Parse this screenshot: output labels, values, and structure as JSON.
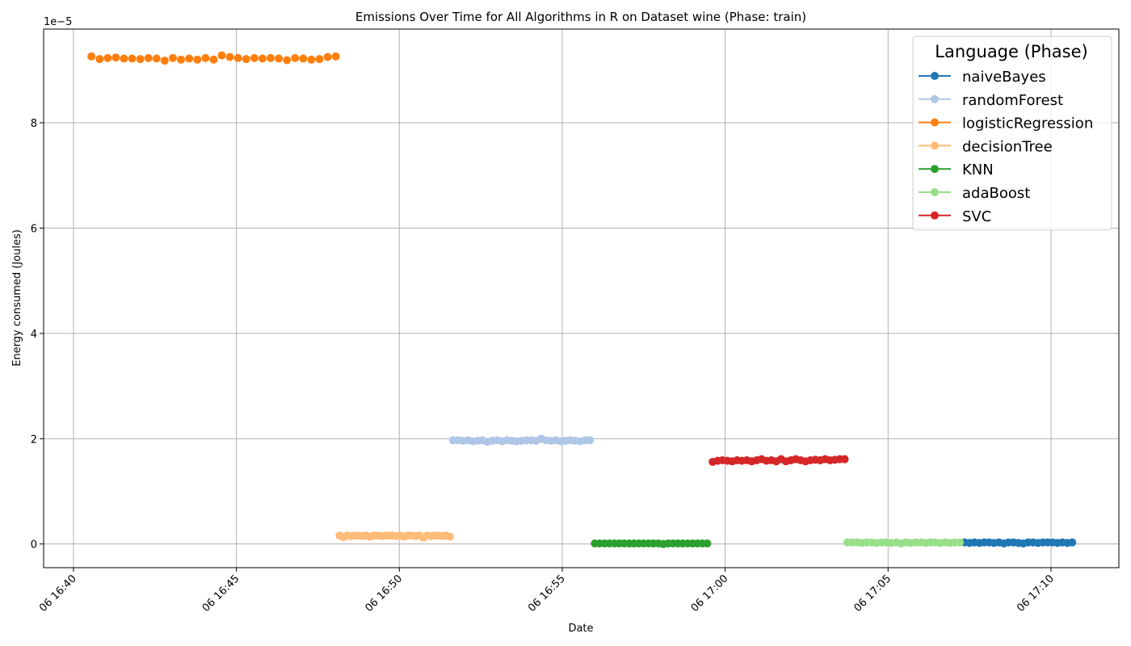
{
  "chart_data": {
    "type": "scatter",
    "title": "Emissions Over Time for All Algorithms in R on Dataset wine (Phase: train)",
    "xlabel": "Date",
    "ylabel": "Energy consumed (Joules)",
    "y_offset_label": "1e−5",
    "y_scale": 1e-05,
    "xlim": [
      "16:39:05",
      "17:12:05"
    ],
    "ylim": [
      -0.45,
      9.78
    ],
    "x_ticks": [
      "16:40",
      "16:45",
      "16:50",
      "16:55",
      "17:00",
      "17:05",
      "17:10"
    ],
    "x_tick_labels": [
      "06 16:40",
      "06 16:45",
      "06 16:50",
      "06 16:55",
      "06 17:00",
      "06 17:05",
      "06 17:10"
    ],
    "y_ticks": [
      0,
      2,
      4,
      6,
      8
    ],
    "y_tick_labels": [
      "0",
      "2",
      "4",
      "6",
      "8"
    ],
    "grid": true,
    "legend": {
      "title": "Language (Phase)",
      "placement": "top-right"
    },
    "series": [
      {
        "name": "naiveBayes",
        "color": "#1f77b4",
        "marker": "circle",
        "x": [
          "17:07:21",
          "17:07:30",
          "17:07:39",
          "17:07:48",
          "17:07:57",
          "17:08:06",
          "17:08:15",
          "17:08:24",
          "17:08:33",
          "17:08:42",
          "17:08:51",
          "17:09:00",
          "17:09:09",
          "17:09:18",
          "17:09:27",
          "17:09:36",
          "17:09:45",
          "17:09:54",
          "17:10:03",
          "17:10:12",
          "17:10:21",
          "17:10:30",
          "17:10:39"
        ],
        "y": [
          0.03,
          0.02,
          0.03,
          0.02,
          0.03,
          0.03,
          0.02,
          0.03,
          0.01,
          0.03,
          0.03,
          0.02,
          0.01,
          0.03,
          0.03,
          0.02,
          0.03,
          0.03,
          0.03,
          0.02,
          0.03,
          0.02,
          0.03
        ]
      },
      {
        "name": "randomForest",
        "color": "#aec7e8",
        "marker": "circle",
        "x": [
          "16:51:39",
          "16:51:48",
          "16:51:57",
          "16:52:06",
          "16:52:15",
          "16:52:24",
          "16:52:33",
          "16:52:42",
          "16:52:51",
          "16:53:00",
          "16:53:09",
          "16:53:18",
          "16:53:27",
          "16:53:36",
          "16:53:45",
          "16:53:54",
          "16:54:03",
          "16:54:12",
          "16:54:21",
          "16:54:30",
          "16:54:39",
          "16:54:48",
          "16:54:57",
          "16:55:06",
          "16:55:15",
          "16:55:24",
          "16:55:33",
          "16:55:42",
          "16:55:51"
        ],
        "y": [
          1.97,
          1.97,
          1.96,
          1.97,
          1.95,
          1.96,
          1.97,
          1.94,
          1.96,
          1.97,
          1.95,
          1.97,
          1.96,
          1.95,
          1.96,
          1.97,
          1.97,
          1.96,
          2.0,
          1.97,
          1.96,
          1.97,
          1.95,
          1.96,
          1.97,
          1.96,
          1.95,
          1.97,
          1.97
        ]
      },
      {
        "name": "logisticRegression",
        "color": "#ff7f0e",
        "marker": "circle",
        "x": [
          "16:40:33",
          "16:40:48",
          "16:41:03",
          "16:41:18",
          "16:41:33",
          "16:41:48",
          "16:42:03",
          "16:42:18",
          "16:42:33",
          "16:42:48",
          "16:43:03",
          "16:43:18",
          "16:43:33",
          "16:43:48",
          "16:44:03",
          "16:44:18",
          "16:44:33",
          "16:44:48",
          "16:45:03",
          "16:45:18",
          "16:45:33",
          "16:45:48",
          "16:46:03",
          "16:46:18",
          "16:46:33",
          "16:46:48",
          "16:47:03",
          "16:47:18",
          "16:47:33",
          "16:47:48",
          "16:48:03"
        ],
        "y": [
          9.26,
          9.21,
          9.23,
          9.24,
          9.22,
          9.22,
          9.21,
          9.23,
          9.22,
          9.18,
          9.23,
          9.2,
          9.22,
          9.2,
          9.23,
          9.2,
          9.28,
          9.25,
          9.23,
          9.21,
          9.23,
          9.22,
          9.23,
          9.22,
          9.19,
          9.23,
          9.22,
          9.2,
          9.21,
          9.25,
          9.26
        ]
      },
      {
        "name": "decisionTree",
        "color": "#ffbb78",
        "marker": "circle",
        "x": [
          "16:48:10",
          "16:48:17",
          "16:48:24",
          "16:48:31",
          "16:48:38",
          "16:48:45",
          "16:48:52",
          "16:48:59",
          "16:49:06",
          "16:49:13",
          "16:49:20",
          "16:49:27",
          "16:49:34",
          "16:49:41",
          "16:49:48",
          "16:49:55",
          "16:50:02",
          "16:50:09",
          "16:50:16",
          "16:50:23",
          "16:50:30",
          "16:50:37",
          "16:50:44",
          "16:50:51",
          "16:50:58",
          "16:51:05",
          "16:51:12",
          "16:51:19",
          "16:51:26",
          "16:51:33"
        ],
        "y": [
          0.16,
          0.13,
          0.16,
          0.15,
          0.16,
          0.16,
          0.15,
          0.16,
          0.14,
          0.16,
          0.16,
          0.15,
          0.16,
          0.16,
          0.16,
          0.15,
          0.16,
          0.14,
          0.16,
          0.16,
          0.15,
          0.16,
          0.12,
          0.16,
          0.15,
          0.16,
          0.16,
          0.15,
          0.16,
          0.14
        ]
      },
      {
        "name": "KNN",
        "color": "#2ca02c",
        "marker": "circle",
        "x": [
          "16:56:00",
          "16:56:09",
          "16:56:18",
          "16:56:27",
          "16:56:36",
          "16:56:45",
          "16:56:54",
          "16:57:03",
          "16:57:12",
          "16:57:21",
          "16:57:30",
          "16:57:39",
          "16:57:48",
          "16:57:57",
          "16:58:06",
          "16:58:15",
          "16:58:24",
          "16:58:33",
          "16:58:42",
          "16:58:51",
          "16:59:00",
          "16:59:09",
          "16:59:18",
          "16:59:27"
        ],
        "y": [
          0.01,
          0.01,
          0.01,
          0.01,
          0.01,
          0.01,
          0.01,
          0.01,
          0.01,
          0.01,
          0.01,
          0.01,
          0.01,
          0.01,
          0.0,
          0.01,
          0.01,
          0.01,
          0.01,
          0.01,
          0.01,
          0.01,
          0.01,
          0.01
        ]
      },
      {
        "name": "adaBoost",
        "color": "#98df8a",
        "marker": "circle",
        "x": [
          "17:03:45",
          "17:03:54",
          "17:04:03",
          "17:04:12",
          "17:04:21",
          "17:04:30",
          "17:04:39",
          "17:04:48",
          "17:04:57",
          "17:05:06",
          "17:05:15",
          "17:05:24",
          "17:05:33",
          "17:05:42",
          "17:05:51",
          "17:06:00",
          "17:06:09",
          "17:06:18",
          "17:06:27",
          "17:06:36",
          "17:06:45",
          "17:06:54",
          "17:07:03",
          "17:07:12"
        ],
        "y": [
          0.03,
          0.03,
          0.03,
          0.02,
          0.03,
          0.03,
          0.02,
          0.03,
          0.03,
          0.02,
          0.03,
          0.01,
          0.03,
          0.02,
          0.03,
          0.03,
          0.02,
          0.03,
          0.03,
          0.02,
          0.03,
          0.02,
          0.03,
          0.03
        ]
      },
      {
        "name": "SVC",
        "color": "#d62728",
        "marker": "circle",
        "x": [
          "16:59:37",
          "16:59:46",
          "16:59:55",
          "17:00:04",
          "17:00:13",
          "17:00:22",
          "17:00:31",
          "17:00:40",
          "17:00:49",
          "17:00:58",
          "17:01:07",
          "17:01:16",
          "17:01:25",
          "17:01:34",
          "17:01:43",
          "17:01:52",
          "17:02:01",
          "17:02:10",
          "17:02:19",
          "17:02:28",
          "17:02:37",
          "17:02:46",
          "17:02:55",
          "17:03:04",
          "17:03:13",
          "17:03:22",
          "17:03:31",
          "17:03:40"
        ],
        "y": [
          1.56,
          1.58,
          1.59,
          1.58,
          1.57,
          1.59,
          1.58,
          1.59,
          1.57,
          1.59,
          1.61,
          1.58,
          1.59,
          1.57,
          1.61,
          1.57,
          1.59,
          1.61,
          1.59,
          1.57,
          1.59,
          1.6,
          1.59,
          1.61,
          1.59,
          1.6,
          1.61,
          1.61
        ]
      }
    ]
  }
}
